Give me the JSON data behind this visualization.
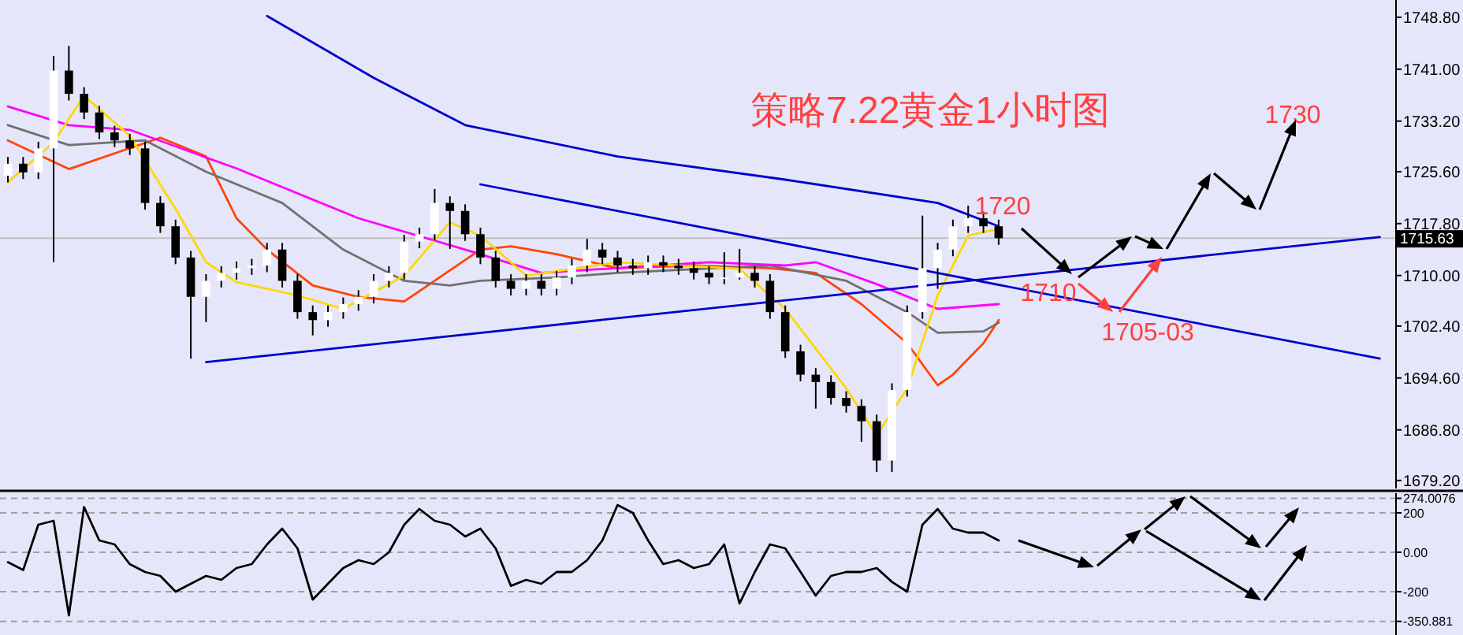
{
  "chart_data": [
    {
      "type": "candlestick",
      "title": "策略7.22黄金1小时图",
      "categories": [
        null,
        null,
        null,
        null,
        null,
        null,
        null,
        null,
        null,
        null,
        null,
        null,
        null,
        null,
        null,
        null,
        null,
        null,
        null,
        null,
        null,
        null,
        null,
        null,
        null,
        null,
        null,
        null,
        null,
        null,
        null,
        null,
        null,
        null,
        null,
        null,
        null,
        null,
        null,
        null,
        null,
        null,
        null,
        null,
        null,
        null,
        null,
        null,
        null,
        null,
        null,
        null,
        null,
        null,
        null,
        null,
        null,
        null,
        null,
        null,
        null,
        null,
        null,
        null,
        null,
        null,
        null,
        null,
        null,
        null,
        null,
        null,
        null,
        null,
        null,
        null,
        null,
        null,
        null,
        null,
        null,
        null,
        null,
        null,
        null,
        null,
        null,
        null,
        null,
        null,
        null
      ],
      "ohlc": [
        [
          1725.0,
          1727.8,
          1724.0,
          1726.8
        ],
        [
          1726.8,
          1727.8,
          1724.5,
          1725.5
        ],
        [
          1725.5,
          1730.1,
          1724.5,
          1729.1
        ],
        [
          1729.1,
          1743.0,
          1712.0,
          1740.8
        ],
        [
          1740.8,
          1744.5,
          1736.3,
          1737.3
        ],
        [
          1737.3,
          1738.3,
          1733.5,
          1734.5
        ],
        [
          1734.5,
          1735.5,
          1730.5,
          1731.5
        ],
        [
          1731.5,
          1732.5,
          1729.3,
          1730.3
        ],
        [
          1730.3,
          1731.3,
          1728.1,
          1729.1
        ],
        [
          1729.1,
          1730.1,
          1719.9,
          1720.9
        ],
        [
          1720.9,
          1721.9,
          1716.4,
          1717.4
        ],
        [
          1717.4,
          1718.4,
          1711.7,
          1712.7
        ],
        [
          1712.7,
          1713.7,
          1697.5,
          1706.8
        ],
        [
          1706.8,
          1710.2,
          1703.0,
          1709.2
        ],
        [
          1709.2,
          1711.4,
          1708.2,
          1710.4
        ],
        [
          1710.4,
          1712.1,
          1709.4,
          1711.1
        ],
        [
          1711.1,
          1712.5,
          1710.1,
          1711.5
        ],
        [
          1711.5,
          1714.9,
          1710.5,
          1713.9
        ],
        [
          1713.9,
          1714.9,
          1708.2,
          1709.2
        ],
        [
          1709.2,
          1710.2,
          1703.5,
          1704.5
        ],
        [
          1704.5,
          1705.5,
          1701.0,
          1703.3
        ],
        [
          1703.3,
          1705.5,
          1702.3,
          1704.5
        ],
        [
          1704.5,
          1706.7,
          1703.5,
          1705.7
        ],
        [
          1705.7,
          1707.8,
          1704.7,
          1706.8
        ],
        [
          1706.8,
          1710.2,
          1705.8,
          1709.2
        ],
        [
          1709.2,
          1711.4,
          1708.2,
          1710.4
        ],
        [
          1710.4,
          1716.1,
          1709.4,
          1715.1
        ],
        [
          1715.1,
          1717.2,
          1714.1,
          1716.2
        ],
        [
          1716.2,
          1723.0,
          1715.2,
          1720.9
        ],
        [
          1720.9,
          1721.9,
          1714.0,
          1719.7
        ],
        [
          1719.7,
          1720.7,
          1715.2,
          1716.2
        ],
        [
          1716.2,
          1717.2,
          1711.7,
          1712.7
        ],
        [
          1712.7,
          1713.7,
          1708.2,
          1709.2
        ],
        [
          1709.2,
          1710.2,
          1707.0,
          1708.0
        ],
        [
          1708.0,
          1710.2,
          1707.0,
          1709.2
        ],
        [
          1709.2,
          1710.2,
          1707.0,
          1708.0
        ],
        [
          1708.0,
          1710.7,
          1707.0,
          1709.7
        ],
        [
          1709.7,
          1712.5,
          1708.7,
          1711.5
        ],
        [
          1711.5,
          1715.5,
          1710.5,
          1713.9
        ],
        [
          1713.9,
          1714.9,
          1711.7,
          1712.7
        ],
        [
          1712.7,
          1713.7,
          1710.5,
          1711.5
        ],
        [
          1711.5,
          1712.5,
          1710.1,
          1711.1
        ],
        [
          1711.1,
          1713.0,
          1710.1,
          1712.0
        ],
        [
          1712.0,
          1713.0,
          1710.5,
          1711.5
        ],
        [
          1711.5,
          1712.5,
          1710.1,
          1711.1
        ],
        [
          1711.1,
          1712.1,
          1709.4,
          1710.4
        ],
        [
          1710.4,
          1711.4,
          1708.7,
          1709.7
        ],
        [
          1709.7,
          1713.5,
          1708.7,
          1709.7
        ],
        [
          1709.7,
          1714.0,
          1709.4,
          1710.4
        ],
        [
          1710.4,
          1711.4,
          1708.2,
          1709.2
        ],
        [
          1709.2,
          1710.2,
          1703.5,
          1704.5
        ],
        [
          1704.5,
          1705.5,
          1697.6,
          1698.6
        ],
        [
          1698.6,
          1699.6,
          1694.1,
          1695.1
        ],
        [
          1695.1,
          1696.1,
          1690.0,
          1694.0
        ],
        [
          1694.0,
          1695.0,
          1690.6,
          1691.6
        ],
        [
          1691.6,
          1692.6,
          1689.4,
          1690.4
        ],
        [
          1690.4,
          1691.4,
          1685.0,
          1688.1
        ],
        [
          1688.1,
          1689.1,
          1680.5,
          1682.2
        ],
        [
          1682.2,
          1693.8,
          1680.5,
          1692.8
        ],
        [
          1692.8,
          1705.5,
          1691.8,
          1704.5
        ],
        [
          1704.5,
          1719.0,
          1703.5,
          1711.1
        ],
        [
          1711.1,
          1714.9,
          1708.0,
          1713.9
        ],
        [
          1713.9,
          1718.4,
          1712.9,
          1717.4
        ],
        [
          1717.4,
          1720.5,
          1716.4,
          1718.6
        ],
        [
          1718.6,
          1719.6,
          1716.4,
          1717.4
        ],
        [
          1717.4,
          1718.4,
          1714.6,
          1715.6
        ],
        null,
        null,
        null,
        null,
        null,
        null,
        null,
        null,
        null,
        null,
        null,
        null,
        null,
        null,
        null,
        null,
        null,
        null,
        null,
        null,
        null,
        null,
        null,
        null,
        null
      ],
      "series": [
        {
          "type": "line",
          "color": "#ff4500",
          "values": [
            1730.3,
            null,
            null,
            null,
            1726.0,
            null,
            null,
            null,
            null,
            null,
            1730.7,
            null,
            null,
            1727.9,
            null,
            1718.6,
            null,
            1713.9,
            null,
            null,
            1708.5,
            null,
            null,
            1706.8,
            null,
            null,
            1706.1,
            null,
            1709.2,
            null,
            null,
            1713.9,
            null,
            1714.4,
            null,
            null,
            1713.2,
            null,
            null,
            null,
            1711.1,
            null,
            null,
            null,
            null,
            1711.5,
            null,
            null,
            null,
            null,
            1711.1,
            null,
            null,
            1710.4,
            null,
            null,
            1705.7,
            null,
            null,
            1699.8,
            null,
            1693.5,
            1695.1,
            null,
            1699.8,
            1703.3,
            null,
            null,
            null,
            null,
            null,
            null,
            null,
            null,
            null,
            null,
            null,
            null,
            null,
            null,
            null,
            null,
            null,
            null,
            null,
            null,
            null,
            null,
            null,
            null,
            null
          ]
        },
        {
          "type": "line",
          "color": "#707070",
          "values": [
            1732.6,
            null,
            null,
            null,
            1729.6,
            null,
            null,
            null,
            null,
            1730.3,
            null,
            null,
            null,
            1725.6,
            null,
            null,
            null,
            null,
            1720.9,
            null,
            null,
            null,
            1713.9,
            null,
            null,
            null,
            1709.2,
            null,
            null,
            1708.5,
            null,
            1709.2,
            null,
            null,
            null,
            null,
            1709.7,
            null,
            null,
            null,
            1710.4,
            null,
            null,
            null,
            null,
            null,
            null,
            null,
            null,
            null,
            1711.5,
            null,
            null,
            null,
            null,
            1709.2,
            null,
            null,
            null,
            1704.5,
            null,
            1701.4,
            null,
            null,
            1701.6,
            1702.9,
            null,
            null,
            null,
            null,
            null,
            null,
            null,
            null,
            null,
            null,
            null,
            null,
            null,
            null,
            null,
            null,
            null,
            null,
            null,
            null,
            null,
            null,
            null,
            null,
            null
          ]
        },
        {
          "type": "line",
          "color": "#ff00ff",
          "values": [
            1735.4,
            null,
            null,
            null,
            1732.6,
            null,
            null,
            null,
            1731.9,
            null,
            null,
            null,
            null,
            null,
            null,
            1726.1,
            null,
            null,
            null,
            null,
            null,
            null,
            null,
            1718.6,
            null,
            null,
            null,
            null,
            null,
            null,
            1713.9,
            null,
            null,
            null,
            null,
            1710.4,
            null,
            null,
            null,
            null,
            null,
            null,
            null,
            null,
            null,
            null,
            1712.0,
            null,
            null,
            null,
            null,
            1711.5,
            null,
            1712.0,
            null,
            null,
            null,
            1708.7,
            null,
            null,
            null,
            1705.0,
            null,
            null,
            null,
            1705.7,
            null,
            null,
            null,
            null,
            null,
            null,
            null,
            null,
            null,
            null,
            null,
            null,
            null,
            null,
            null,
            null,
            null,
            null,
            null,
            null,
            null,
            null,
            null,
            null,
            null
          ]
        },
        {
          "type": "line",
          "color": "#ffd700",
          "values": [
            1724,
            null,
            null,
            1730,
            null,
            1737,
            null,
            null,
            1731,
            null,
            null,
            1720,
            null,
            1712,
            null,
            1709,
            null,
            null,
            null,
            1707,
            null,
            null,
            1705,
            null,
            null,
            null,
            1710,
            null,
            null,
            1718,
            null,
            1716,
            null,
            null,
            1710,
            null,
            null,
            null,
            null,
            null,
            1712,
            null,
            null,
            null,
            null,
            null,
            null,
            null,
            1711,
            null,
            null,
            1705,
            null,
            null,
            null,
            1693,
            null,
            1686,
            null,
            1693,
            null,
            1707,
            null,
            1716,
            null,
            1717,
            null,
            null,
            null,
            null,
            null,
            null,
            null,
            null,
            null,
            null,
            null,
            null,
            null,
            null,
            null,
            null,
            null,
            null,
            null,
            null,
            null,
            null,
            null,
            null,
            null
          ]
        },
        {
          "type": "line",
          "color": "#0000cd",
          "values": [
            null,
            null,
            null,
            null,
            null,
            null,
            null,
            null,
            null,
            null,
            null,
            null,
            null,
            null,
            null,
            null,
            null,
            1749.0,
            null,
            null,
            null,
            null,
            null,
            null,
            1739.7,
            null,
            null,
            null,
            null,
            null,
            1732.6,
            null,
            null,
            null,
            null,
            null,
            null,
            null,
            null,
            null,
            1727.9,
            null,
            null,
            null,
            null,
            null,
            null,
            null,
            null,
            null,
            null,
            1724.4,
            null,
            null,
            null,
            null,
            null,
            null,
            null,
            null,
            null,
            1720.9,
            null,
            null,
            null,
            1717.4,
            null,
            null,
            null,
            null,
            null,
            null,
            null,
            null,
            null,
            null,
            null,
            null,
            null,
            null,
            null,
            null,
            null,
            null,
            null,
            null,
            null,
            null,
            null,
            null,
            null
          ]
        },
        {
          "type": "line",
          "color": "#0000cd",
          "values": [
            null,
            null,
            null,
            null,
            null,
            null,
            null,
            null,
            null,
            null,
            null,
            null,
            null,
            1697.0,
            null,
            null,
            null,
            null,
            null,
            null,
            null,
            null,
            null,
            null,
            null,
            null,
            null,
            null,
            null,
            null,
            null,
            null,
            null,
            null,
            null,
            null,
            null,
            null,
            null,
            null,
            null,
            null,
            null,
            null,
            null,
            null,
            null,
            null,
            null,
            null,
            null,
            null,
            null,
            null,
            null,
            null,
            null,
            null,
            null,
            null,
            null,
            null,
            null,
            null,
            null,
            null,
            null,
            null,
            null,
            null,
            null,
            null,
            null,
            null,
            null,
            null,
            null,
            null,
            null,
            null,
            null,
            null,
            null,
            null,
            null,
            null,
            null,
            null,
            null,
            null,
            1715.8
          ]
        },
        {
          "type": "line",
          "color": "#0000cd",
          "values": [
            null,
            null,
            null,
            null,
            null,
            null,
            null,
            null,
            null,
            null,
            null,
            null,
            null,
            null,
            null,
            null,
            null,
            null,
            null,
            null,
            null,
            null,
            null,
            null,
            null,
            null,
            null,
            null,
            null,
            null,
            null,
            1723.7,
            null,
            null,
            null,
            null,
            null,
            null,
            null,
            null,
            null,
            null,
            null,
            null,
            null,
            null,
            null,
            null,
            null,
            null,
            null,
            null,
            null,
            null,
            null,
            null,
            null,
            null,
            null,
            null,
            null,
            null,
            null,
            null,
            null,
            null,
            null,
            null,
            null,
            null,
            null,
            null,
            null,
            null,
            null,
            null,
            null,
            null,
            null,
            null,
            null,
            null,
            null,
            null,
            null,
            null,
            null,
            null,
            null,
            null,
            1697.5
          ]
        }
      ],
      "annotations": [
        "1720",
        "1710",
        "1705-03",
        "1730"
      ],
      "ref_lines": [
        {
          "axis": "y",
          "value": 1715.63,
          "label": "1715.63",
          "color": "#c0c0c0"
        }
      ],
      "ylim": [
        1678.0,
        1751.4
      ],
      "yticks": [
        {
          "value": 1748.8,
          "label": "1748.80"
        },
        {
          "value": 1741.0,
          "label": "1741.00"
        },
        {
          "value": 1733.2,
          "label": "1733.20"
        },
        {
          "value": 1725.6,
          "label": "1725.60"
        },
        {
          "value": 1717.8,
          "label": "1717.80"
        },
        {
          "value": 1710.0,
          "label": "1710.00"
        },
        {
          "value": 1702.4,
          "label": "1702.40"
        },
        {
          "value": 1694.6,
          "label": "1694.60"
        },
        {
          "value": 1686.8,
          "label": "1686.80"
        },
        {
          "value": 1679.2,
          "label": "1679.20"
        }
      ],
      "tick_labels": "y"
    },
    {
      "type": "line",
      "color": "#000000",
      "categories": [
        null,
        null,
        null,
        null,
        null,
        null,
        null,
        null,
        null,
        null,
        null,
        null,
        null,
        null,
        null,
        null,
        null,
        null,
        null,
        null,
        null,
        null,
        null,
        null,
        null,
        null,
        null,
        null,
        null,
        null,
        null,
        null,
        null,
        null,
        null,
        null,
        null,
        null,
        null,
        null,
        null,
        null,
        null,
        null,
        null,
        null,
        null,
        null,
        null,
        null,
        null,
        null,
        null,
        null,
        null,
        null,
        null,
        null,
        null,
        null,
        null,
        null,
        null,
        null,
        null,
        null,
        null,
        null,
        null,
        null,
        null,
        null,
        null,
        null,
        null,
        null,
        null,
        null,
        null,
        null,
        null,
        null,
        null,
        null,
        null,
        null,
        null,
        null,
        null,
        null,
        null
      ],
      "values": [
        -50,
        -90,
        140,
        160,
        -320,
        230,
        60,
        40,
        -60,
        -100,
        -120,
        -200,
        -160,
        -120,
        -140,
        -80,
        -60,
        40,
        120,
        20,
        -240,
        -160,
        -80,
        -40,
        -60,
        0,
        140,
        220,
        160,
        140,
        80,
        120,
        20,
        -170,
        -140,
        -160,
        -100,
        -100,
        -40,
        60,
        240,
        200,
        60,
        -60,
        -40,
        -80,
        -60,
        40,
        -260,
        -100,
        40,
        20,
        -100,
        -220,
        -120,
        -100,
        -100,
        -80,
        -150,
        -200,
        140,
        220,
        120,
        100,
        100,
        60,
        null,
        null,
        null,
        null,
        null,
        null,
        null,
        null,
        null,
        null,
        null,
        null,
        null,
        null,
        null,
        null,
        null,
        null,
        null,
        null,
        null,
        null,
        null,
        null,
        null
      ],
      "ylim": [
        -420,
        300
      ],
      "yticks": [
        {
          "value": 274.0076,
          "label": "274.0076"
        },
        {
          "value": 200,
          "label": "200"
        },
        {
          "value": 0,
          "label": "0.00"
        },
        {
          "value": -200,
          "label": "-200"
        },
        {
          "value": -350.881,
          "label": "-350.881"
        }
      ],
      "grid": "y",
      "tick_labels": "y"
    }
  ]
}
